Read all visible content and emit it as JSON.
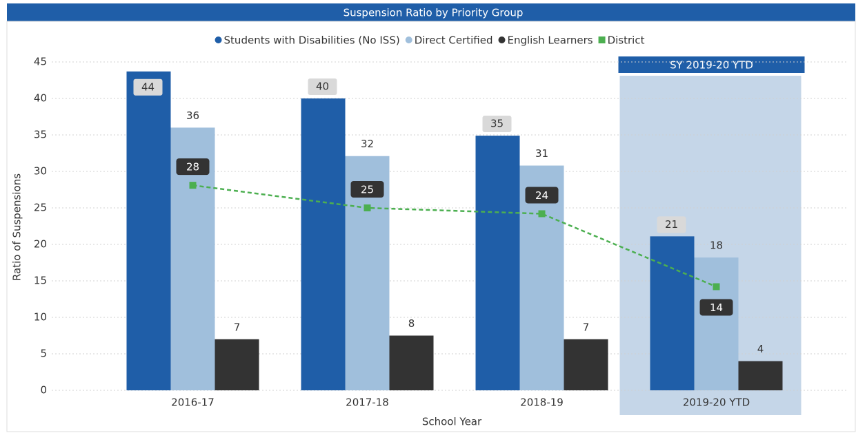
{
  "chart_data": {
    "type": "bar",
    "title": "Suspension Ratio by Priority Group",
    "annotation": "SY 2019-20 YTD",
    "xlabel": "School Year",
    "ylabel": "Ratio of Suspensions",
    "categories": [
      "2016-17",
      "2017-18",
      "2018-19",
      "2019-20 YTD"
    ],
    "series": [
      {
        "name": "Students with Disabilities (No ISS)",
        "color": "#1f5ea8",
        "values": [
          43.7,
          40,
          34.9,
          21.1
        ],
        "value_labels": [
          "44",
          "40",
          "35",
          "21"
        ]
      },
      {
        "name": "Direct Certified",
        "color": "#a0bfdc",
        "values": [
          36,
          32.1,
          30.8,
          18.2
        ],
        "value_labels": [
          "36",
          "32",
          "31",
          "18"
        ]
      },
      {
        "name": "English Learners",
        "color": "#333333",
        "values": [
          7,
          7.5,
          7,
          4
        ],
        "value_labels": [
          "7",
          "8",
          "7",
          "4"
        ]
      },
      {
        "name": "District",
        "type": "line",
        "color": "#4caf50",
        "values": [
          28.1,
          25,
          24.2,
          14.2
        ],
        "value_labels": [
          "28",
          "25",
          "24",
          "14"
        ]
      }
    ],
    "ylim": [
      0,
      45
    ],
    "yticks": [
      0,
      5,
      10,
      15,
      20,
      25,
      30,
      35,
      40,
      45
    ],
    "grid": true,
    "legend": "top"
  }
}
